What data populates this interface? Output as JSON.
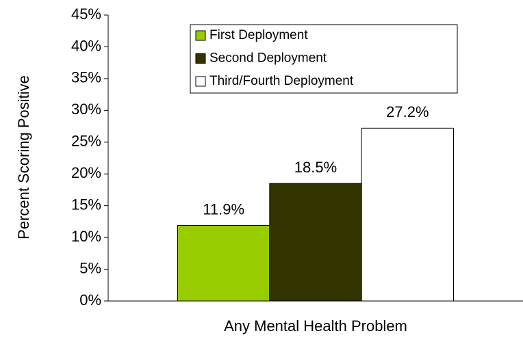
{
  "chart_data": {
    "type": "bar",
    "y_label": "Percent Scoring Positive",
    "categories": [
      "Any Mental Health Problem"
    ],
    "series": [
      {
        "name": "First Deployment",
        "color": "#99cc00",
        "values": [
          11.9
        ],
        "value_labels": [
          "11.9%"
        ]
      },
      {
        "name": "Second Deployment",
        "color": "#333300",
        "values": [
          18.5
        ],
        "value_labels": [
          "18.5%"
        ]
      },
      {
        "name": "Third/Fourth Deployment",
        "color": "#ffffff",
        "values": [
          27.2
        ],
        "value_labels": [
          "27.2%"
        ]
      }
    ],
    "ylim": [
      0,
      45
    ],
    "yticks": [
      {
        "value": 0,
        "label": "0%"
      },
      {
        "value": 5,
        "label": "5%"
      },
      {
        "value": 10,
        "label": "10%"
      },
      {
        "value": 15,
        "label": "15%"
      },
      {
        "value": 20,
        "label": "20%"
      },
      {
        "value": 25,
        "label": "25%"
      },
      {
        "value": 30,
        "label": "30%"
      },
      {
        "value": 35,
        "label": "35%"
      },
      {
        "value": 40,
        "label": "40%"
      },
      {
        "value": 45,
        "label": "45%"
      }
    ]
  }
}
